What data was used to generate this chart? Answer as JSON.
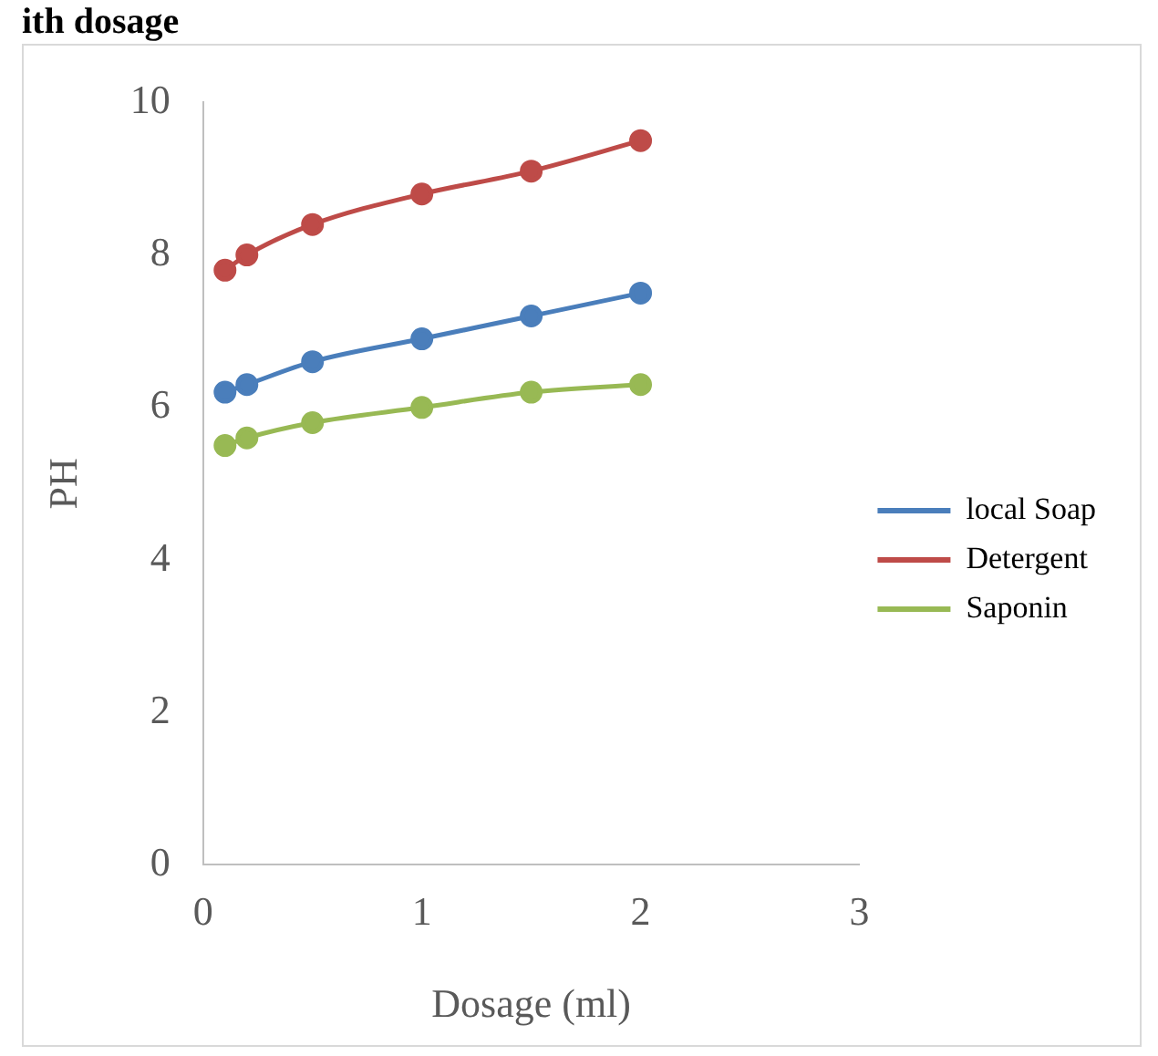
{
  "chart_data": {
    "type": "line",
    "title": "ith dosage",
    "xlabel": "Dosage (ml)",
    "ylabel": "PH",
    "x": [
      0.1,
      0.2,
      0.5,
      1,
      1.5,
      2
    ],
    "series": [
      {
        "name": "local Soap",
        "color": "#4a7ebb",
        "values": [
          6.2,
          6.3,
          6.6,
          6.9,
          7.2,
          7.5
        ]
      },
      {
        "name": "Detergent",
        "color": "#be4b48",
        "values": [
          7.8,
          8.0,
          8.4,
          8.8,
          9.1,
          9.5
        ]
      },
      {
        "name": "Saponin",
        "color": "#98b954",
        "values": [
          5.5,
          5.6,
          5.8,
          6.0,
          6.2,
          6.3
        ]
      }
    ],
    "xlim": [
      0,
      3
    ],
    "xticks": [
      0,
      1,
      2,
      3
    ],
    "ylim": [
      0,
      10
    ],
    "yticks": [
      0,
      2,
      4,
      6,
      8,
      10
    ],
    "grid": false,
    "legend": "right",
    "marker": "circle",
    "line_style": "solid"
  }
}
